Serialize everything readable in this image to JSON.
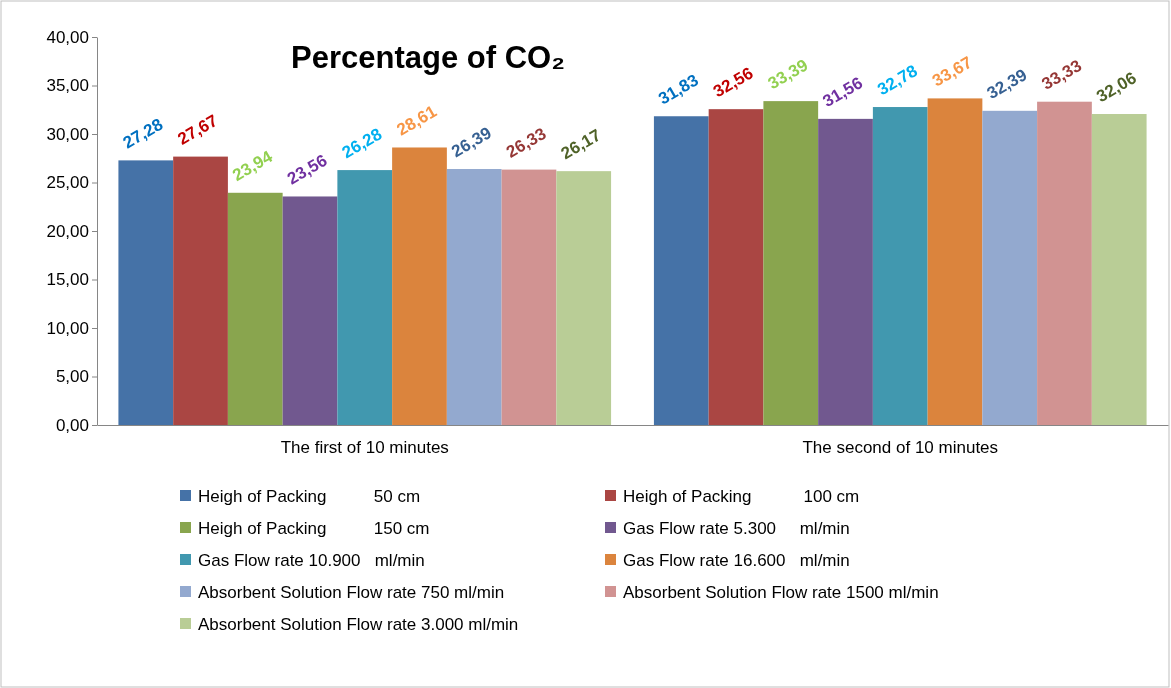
{
  "chart_data": {
    "type": "bar",
    "title": "Percentage of CO₂",
    "categories": [
      "The first of 10 minutes",
      "The second of 10 minutes"
    ],
    "series": [
      {
        "name": "Heigh of Packing          50 cm",
        "color": "#4572a7",
        "values": [
          27.28,
          31.83
        ],
        "value_labels": [
          "27,28",
          "31,83"
        ]
      },
      {
        "name": "Heigh of Packing           100 cm",
        "color": "#aa4643",
        "values": [
          27.67,
          32.56
        ],
        "value_labels": [
          "27,67",
          "32,56"
        ]
      },
      {
        "name": "Heigh of Packing          150 cm",
        "color": "#89a54e",
        "values": [
          23.94,
          33.39
        ],
        "value_labels": [
          "23,94",
          "33,39"
        ]
      },
      {
        "name": "Gas Flow rate 5.300     ml/min",
        "color": "#71588f",
        "values": [
          23.56,
          31.56
        ],
        "value_labels": [
          "23,56",
          "31,56"
        ]
      },
      {
        "name": "Gas Flow rate 10.900   ml/min",
        "color": "#4198af",
        "values": [
          26.28,
          32.78
        ],
        "value_labels": [
          "26,28",
          "32,78"
        ]
      },
      {
        "name": "Gas Flow rate 16.600   ml/min",
        "color": "#db843d",
        "values": [
          28.61,
          33.67
        ],
        "value_labels": [
          "28,61",
          "33,67"
        ]
      },
      {
        "name": "Absorbent Solution Flow rate 750 ml/min",
        "color": "#93a9cf",
        "values": [
          26.39,
          32.39
        ],
        "value_labels": [
          "26,39",
          "32,39"
        ]
      },
      {
        "name": "Absorbent Solution Flow rate 1500 ml/min",
        "color": "#d19392",
        "values": [
          26.33,
          33.33
        ],
        "value_labels": [
          "26,33",
          "33,33"
        ]
      },
      {
        "name": "Absorbent Solution Flow rate 3.000 ml/min",
        "color": "#b9cd96",
        "values": [
          26.17,
          32.06
        ],
        "value_labels": [
          "26,17",
          "32,06"
        ]
      }
    ],
    "ylim": [
      0,
      40
    ],
    "yticks": [
      {
        "value": 0,
        "label": "0,00"
      },
      {
        "value": 5,
        "label": "5,00"
      },
      {
        "value": 10,
        "label": "10,00"
      },
      {
        "value": 15,
        "label": "15,00"
      },
      {
        "value": 20,
        "label": "20,00"
      },
      {
        "value": 25,
        "label": "25,00"
      },
      {
        "value": 30,
        "label": "30,00"
      },
      {
        "value": 35,
        "label": "35,00"
      },
      {
        "value": 40,
        "label": "40,00"
      }
    ],
    "grid": false,
    "legend": "bottom"
  }
}
